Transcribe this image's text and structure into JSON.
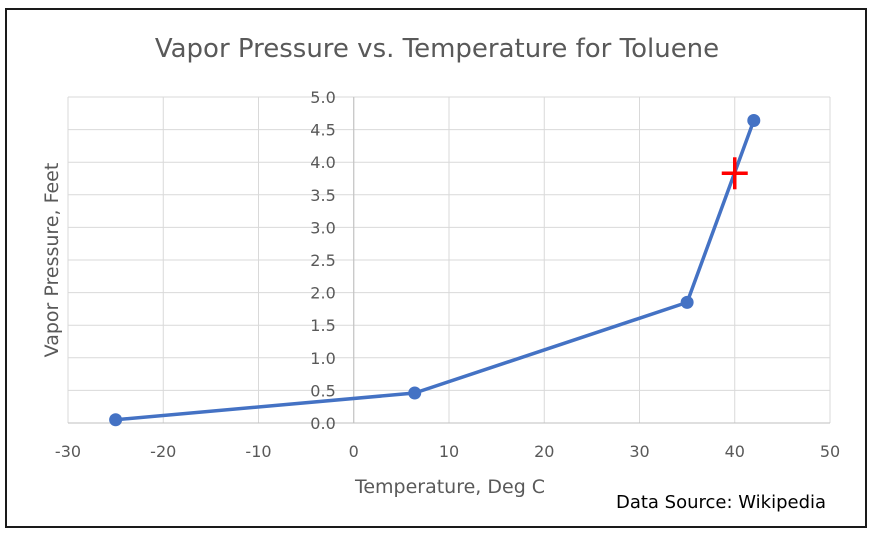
{
  "chart_data": {
    "type": "scatter",
    "title": "Vapor Pressure vs. Temperature for Toluene",
    "xlabel": "Temperature, Deg C",
    "ylabel": "Vapor Pressure, Feet",
    "xlim": [
      -30,
      50
    ],
    "ylim": [
      0,
      5
    ],
    "x_ticks": [
      -30,
      -20,
      -10,
      0,
      10,
      20,
      30,
      40,
      50
    ],
    "y_ticks": [
      "0.0",
      "0.5",
      "1.0",
      "1.5",
      "2.0",
      "2.5",
      "3.0",
      "3.5",
      "4.0",
      "4.5",
      "5.0"
    ],
    "grid": true,
    "legend": "none",
    "series": [
      {
        "name": "Toluene",
        "x": [
          -25,
          6.4,
          35,
          42
        ],
        "y": [
          0.05,
          0.46,
          1.85,
          4.64
        ]
      }
    ],
    "marker": {
      "x": 40,
      "y": 3.83,
      "symbol": "cross"
    },
    "source_note": "Data Source: Wikipedia",
    "colors": {
      "series": "#4472c4",
      "marker": "#ff0000",
      "grid": "#d9d9d9",
      "text": "#595959"
    }
  }
}
